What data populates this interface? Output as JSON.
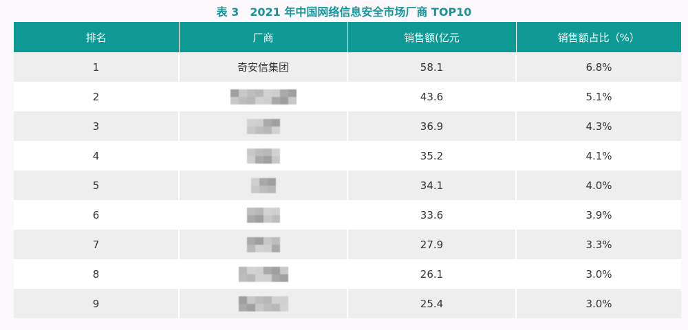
{
  "title": "表 3　2021 年中国网络信息安全市场厂商 TOP10",
  "table": {
    "header": [
      "排名",
      "厂商",
      "销售额(亿元",
      "销售额占比（%）"
    ],
    "rows": [
      [
        1,
        "奇安信集团",
        58.1,
        "6.8%"
      ],
      [
        2,
        null,
        43.6,
        "5.1%"
      ],
      [
        3,
        null,
        36.9,
        "4.3%"
      ],
      [
        4,
        null,
        35.2,
        "4.1%"
      ],
      [
        5,
        null,
        34.1,
        "4.0%"
      ],
      [
        6,
        null,
        33.6,
        "3.9%"
      ],
      [
        7,
        null,
        27.9,
        "3.3%"
      ],
      [
        8,
        null,
        26.1,
        "3.0%"
      ],
      [
        9,
        null,
        25.4,
        "3.0%"
      ]
    ]
  }
}
